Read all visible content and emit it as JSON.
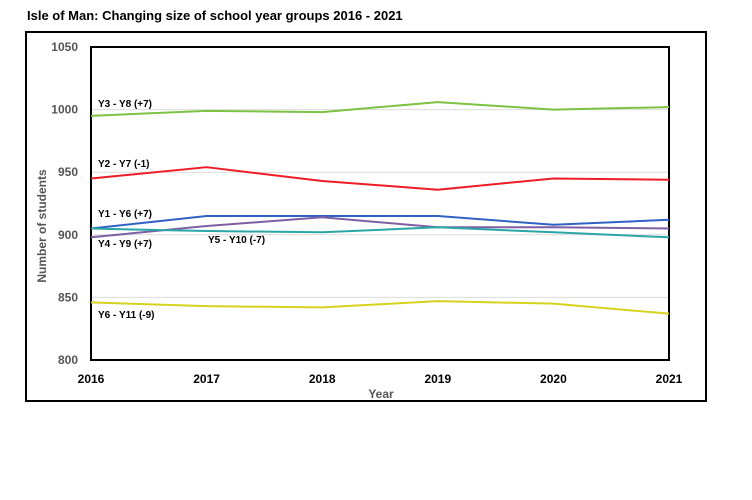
{
  "chart_data": {
    "type": "line",
    "title": "Isle of Man: Changing size of school year groups 2016 - 2021",
    "xlabel": "Year",
    "ylabel": "Number of students",
    "ylim": [
      800,
      1050
    ],
    "yticks": [
      800,
      850,
      900,
      950,
      1000,
      1050
    ],
    "categories": [
      "2016",
      "2017",
      "2018",
      "2019",
      "2020",
      "2021"
    ],
    "grid": true,
    "series": [
      {
        "name": "Y3 - Y8 (+7)",
        "color": "#7dc241",
        "values": [
          995,
          999,
          998,
          1006,
          1000,
          1002
        ]
      },
      {
        "name": "Y2 - Y7 (-1)",
        "color": "#ee1c25",
        "values": [
          945,
          954,
          943,
          936,
          945,
          944
        ]
      },
      {
        "name": "Y1 - Y6 (+7)",
        "color": "#2f62c4",
        "values": [
          905,
          915,
          915,
          915,
          908,
          912
        ]
      },
      {
        "name": "Y4 - Y9 (+7)",
        "color": "#7e5fa3",
        "values": [
          898,
          907,
          914,
          906,
          906,
          905
        ]
      },
      {
        "name": "Y5 - Y10 (-7)",
        "color": "#2aa6a6",
        "values": [
          905,
          903,
          902,
          906,
          902,
          898
        ]
      },
      {
        "name": "Y6 - Y11 (-9)",
        "color": "#d6d21e",
        "values": [
          846,
          843,
          842,
          847,
          845,
          837
        ]
      }
    ]
  }
}
